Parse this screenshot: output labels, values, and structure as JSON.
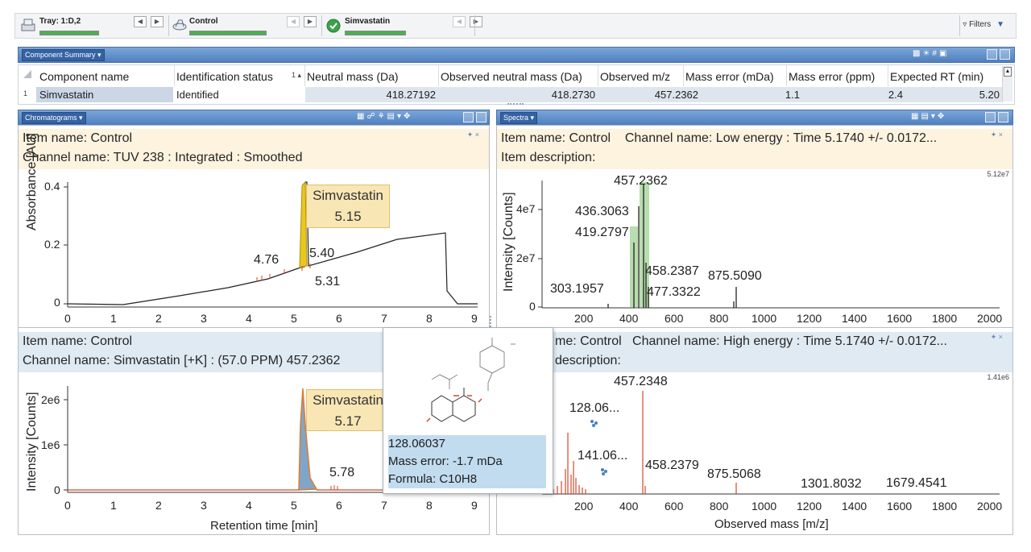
{
  "toolbar": {
    "tray_label": "Tray: 1:D,2",
    "control_label": "Control",
    "compound_label": "Simvastatin",
    "filters_label": "Filters",
    "progress": {
      "tray": 0.7,
      "control": 1.0,
      "compound": 1.0
    }
  },
  "component_summary": {
    "title": "Component Summary ▾",
    "headers": [
      "Component name",
      "Identification status",
      "Neutral mass (Da)",
      "Observed neutral mass (Da)",
      "Observed m/z",
      "Mass error (mDa)",
      "Mass error (ppm)",
      "Expected RT (min)"
    ],
    "row_number": "1",
    "sort_marker": "1 ▴",
    "row": [
      "Simvastatin",
      "Identified",
      "418.27192",
      "418.2730",
      "457.2362",
      "1.1",
      "2.4",
      "5.20"
    ]
  },
  "chromatograms": {
    "title": "Chromatograms ▾",
    "top": {
      "item_name": "Item name: Control",
      "channel_name": "Channel name: TUV 238 : Integrated : Smoothed",
      "ylabel": "Absorbance [AU]",
      "yticks": [
        "0.4",
        "0.2",
        "0"
      ],
      "xticks": [
        "0",
        "1",
        "2",
        "3",
        "4",
        "5",
        "6",
        "7",
        "8",
        "9"
      ],
      "annotation_name": "Simvastatin",
      "annotation_rt": "5.15",
      "peak_labels": [
        "4.76",
        "5.40",
        "5.31"
      ]
    },
    "bottom": {
      "item_name": "Item name: Control",
      "channel_name": "Channel name: Simvastatin [+K] : (57.0 PPM) 457.2362",
      "ylabel": "Intensity [Counts]",
      "yticks": [
        "2e6",
        "1e6",
        "0"
      ],
      "xticks": [
        "0",
        "1",
        "2",
        "3",
        "4",
        "5",
        "6",
        "7",
        "8",
        "9"
      ],
      "xlabel": "Retention time [min]",
      "annotation_name": "Simvastatin",
      "annotation_rt": "5.17",
      "peak_labels": [
        "5.78"
      ]
    }
  },
  "spectra": {
    "title": "Spectra ▾",
    "top": {
      "item_name": "Item name: Control",
      "channel_name": "Channel name: Low energy : Time 5.1740 +/- 0.0172...",
      "item_description": "Item description:",
      "scale": "5.12e7",
      "ylabel": "Intensity [Counts]",
      "yticks": [
        "4e7",
        "2e7",
        "0"
      ],
      "xticks": [
        "200",
        "400",
        "600",
        "800",
        "1000",
        "1200",
        "1400",
        "1600",
        "1800",
        "2000"
      ],
      "peak_labels": [
        "457.2362",
        "436.3063",
        "419.2797",
        "458.2387",
        "875.5090",
        "477.3322",
        "303.1957"
      ]
    },
    "bottom": {
      "item_name": "me: Control",
      "channel_name": "Channel name: High energy : Time 5.1740 +/- 0.0172...",
      "item_description": "description:",
      "scale": "1.41e6",
      "xticks": [
        "200",
        "400",
        "600",
        "800",
        "1000",
        "1200",
        "1400",
        "1600",
        "1800",
        "2000"
      ],
      "xlabel": "Observed mass [m/z]",
      "peak_labels": [
        "457.2348",
        "128.06...",
        "141.06...",
        "458.2379",
        "875.5068",
        "1301.8032",
        "1679.4541"
      ]
    }
  },
  "tooltip": {
    "mass": "128.06037",
    "mass_error": "Mass error: -1.7 mDa",
    "formula": "Formula: C10H8"
  },
  "colors": {
    "header_blue": "#4f7fbf",
    "info_yellow": "#fdf3df",
    "info_blue": "#dfeaf3",
    "annotation_fill": "#f8e6b4",
    "peak_red": "#d2492a",
    "peak_orange": "#e07a2e",
    "highlight_green": "#a6d49a",
    "progress_green": "#4caf50"
  }
}
